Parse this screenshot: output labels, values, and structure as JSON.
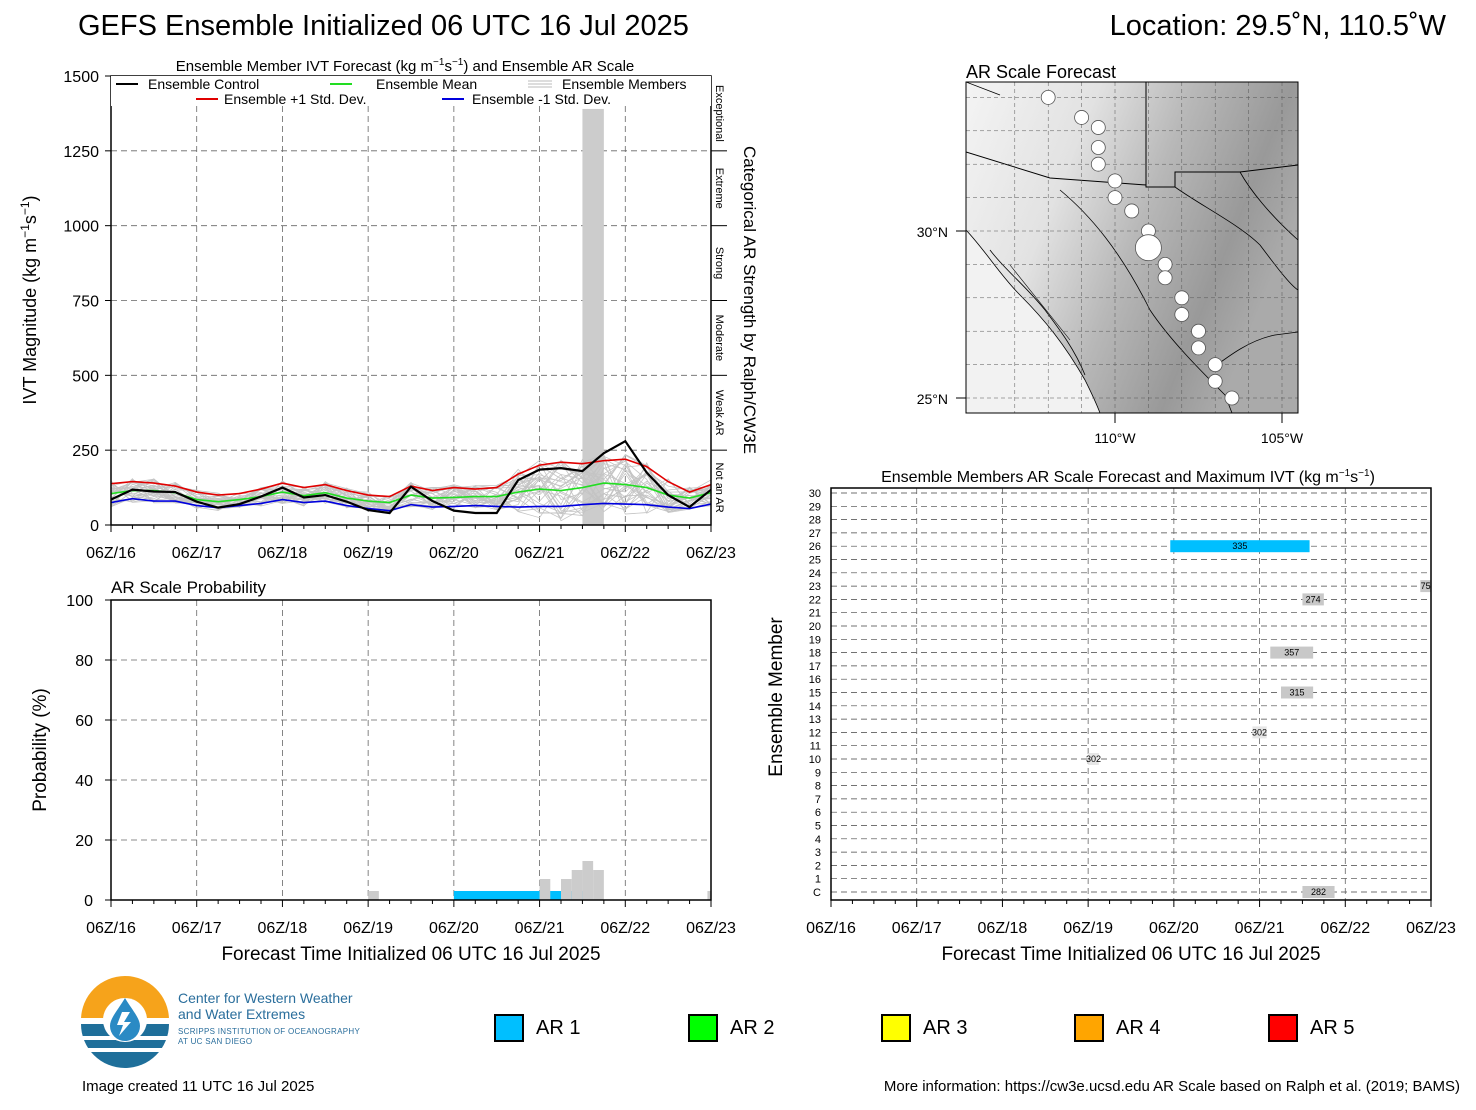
{
  "header": {
    "title": "GEFS Ensemble Initialized 06 UTC 16 Jul 2025",
    "location": "Location: 29.5˚N, 110.5˚W"
  },
  "x_tick_labels": [
    "06Z/16",
    "06Z/17",
    "06Z/18",
    "06Z/19",
    "06Z/20",
    "06Z/21",
    "06Z/22",
    "06Z/23"
  ],
  "x_axis_label": "Forecast Time Initialized 06 UTC 16 Jul 2025",
  "ivt_panel": {
    "title_prefix": "Ensemble Member IVT Forecast (kg m",
    "title_sup1": "−1",
    "title_mid": "s",
    "title_sup2": "−1",
    "title_suffix": ") and Ensemble AR Scale",
    "ylabel_prefix": "IVT Magnitude (kg m",
    "ylabel_sup1": "−1",
    "ylabel_mid": "s",
    "ylabel_sup2": "−1",
    "ylabel_suffix": ")",
    "right_label": "Categorical AR Strength by Ralph/CW3E",
    "legend": {
      "control": "Ensemble Control",
      "mean": "Ensemble Mean",
      "members": "Ensemble Members",
      "plus": "Ensemble +1 Std. Dev.",
      "minus": "Ensemble -1 Std. Dev."
    },
    "categories": [
      {
        "label": "Not an AR",
        "lo": 0,
        "hi": 250
      },
      {
        "label": "Weak AR",
        "lo": 250,
        "hi": 500
      },
      {
        "label": "Moderate",
        "lo": 500,
        "hi": 750
      },
      {
        "label": "Strong",
        "lo": 750,
        "hi": 1000
      },
      {
        "label": "Extreme",
        "lo": 1000,
        "hi": 1250
      },
      {
        "label": "Exceptional",
        "lo": 1250,
        "hi": 1500
      }
    ]
  },
  "prob_panel": {
    "title": "AR Scale Probability",
    "ylabel": "Probability (%)"
  },
  "map_panel": {
    "title": "AR Scale Forecast",
    "lat_labels": [
      "30°N",
      "25°N"
    ],
    "lon_labels": [
      "110°W",
      "105°W"
    ]
  },
  "members_panel": {
    "title_prefix": "Ensemble Members AR Scale Forecast and Maximum IVT (kg m",
    "title_sup1": "−1",
    "title_mid": "s",
    "title_sup2": "−1",
    "title_suffix": ")",
    "ylabel": "Ensemble Member",
    "row_labels": [
      "C",
      "1",
      "2",
      "3",
      "4",
      "5",
      "6",
      "7",
      "8",
      "9",
      "10",
      "11",
      "12",
      "13",
      "14",
      "15",
      "16",
      "17",
      "18",
      "19",
      "20",
      "21",
      "22",
      "23",
      "24",
      "25",
      "26",
      "27",
      "28",
      "29",
      "30"
    ]
  },
  "ar_legend": [
    {
      "label": "AR 1",
      "color": "#00bfff"
    },
    {
      "label": "AR 2",
      "color": "#00ff00"
    },
    {
      "label": "AR 3",
      "color": "#ffff00"
    },
    {
      "label": "AR 4",
      "color": "#ffa500"
    },
    {
      "label": "AR 5",
      "color": "#ff0000"
    }
  ],
  "logo": {
    "line1": "Center for Western Weather",
    "line2": "and Water Extremes",
    "line3": "SCRIPPS INSTITUTION OF OCEANOGRAPHY",
    "line4": "AT UC SAN DIEGO"
  },
  "footer": {
    "created": "Image created 11 UTC 16 Jul 2025",
    "info": "More information: https://cw3e.ucsd.edu AR Scale based on Ralph et al. (2019; BAMS)"
  },
  "chart_data": [
    {
      "type": "line",
      "name": "ivt_forecast",
      "x_hours": [
        0,
        6,
        12,
        18,
        24,
        30,
        36,
        42,
        48,
        54,
        60,
        66,
        72,
        78,
        84,
        90,
        96,
        102,
        108,
        114,
        120,
        126,
        132,
        138,
        144,
        150,
        156,
        162,
        168
      ],
      "ylim": [
        0,
        1500
      ],
      "yticks": [
        0,
        250,
        500,
        750,
        1000,
        1250,
        1500
      ],
      "xlim_hours": [
        0,
        168
      ],
      "series": [
        {
          "name": "Ensemble Control",
          "color": "#000000",
          "values": [
            85,
            118,
            112,
            110,
            78,
            58,
            70,
            95,
            125,
            92,
            100,
            78,
            50,
            40,
            128,
            80,
            48,
            40,
            40,
            150,
            185,
            190,
            180,
            240,
            280,
            175,
            100,
            60,
            118
          ]
        },
        {
          "name": "Ensemble Mean",
          "color": "#22dd22",
          "values": [
            105,
            115,
            115,
            108,
            85,
            78,
            85,
            95,
            110,
            98,
            108,
            90,
            80,
            75,
            100,
            90,
            92,
            95,
            95,
            110,
            120,
            115,
            125,
            140,
            135,
            125,
            100,
            90,
            108
          ]
        },
        {
          "name": "Ensemble +1 Std. Dev.",
          "color": "#e00000",
          "values": [
            138,
            145,
            140,
            130,
            110,
            100,
            105,
            120,
            140,
            125,
            135,
            115,
            100,
            95,
            130,
            115,
            125,
            120,
            125,
            170,
            200,
            210,
            205,
            215,
            220,
            195,
            145,
            110,
            135
          ]
        },
        {
          "name": "Ensemble -1 Std. Dev.",
          "color": "#0000dd",
          "values": [
            75,
            88,
            80,
            80,
            65,
            58,
            65,
            72,
            85,
            75,
            80,
            65,
            55,
            48,
            68,
            60,
            62,
            65,
            62,
            60,
            62,
            62,
            68,
            72,
            70,
            68,
            60,
            55,
            70
          ]
        }
      ],
      "ar_scale_bars": [
        {
          "hour_start": 132,
          "hour_end": 138,
          "ivt_max": 1390,
          "category": "Not an AR"
        }
      ]
    },
    {
      "type": "bar",
      "name": "ar_scale_probability",
      "ylim": [
        0,
        100
      ],
      "yticks": [
        0,
        20,
        40,
        60,
        80,
        100
      ],
      "bars": [
        {
          "hour_start": 72,
          "hour_end": 75,
          "value": 3,
          "color": "#cccccc"
        },
        {
          "hour_start": 96,
          "hour_end": 133,
          "value": 3,
          "color": "#00bfff"
        },
        {
          "hour_start": 120,
          "hour_end": 123,
          "value": 7,
          "color": "#cccccc"
        },
        {
          "hour_start": 126,
          "hour_end": 129,
          "value": 7,
          "color": "#cccccc"
        },
        {
          "hour_start": 129,
          "hour_end": 132,
          "value": 10,
          "color": "#cccccc"
        },
        {
          "hour_start": 132,
          "hour_end": 135,
          "value": 13,
          "color": "#cccccc"
        },
        {
          "hour_start": 135,
          "hour_end": 138,
          "value": 10,
          "color": "#cccccc"
        },
        {
          "hour_start": 167,
          "hour_end": 168,
          "value": 3,
          "color": "#cccccc"
        }
      ]
    },
    {
      "type": "scatter",
      "name": "ar_scale_forecast_map",
      "xlim_lon": [
        -113.0,
        -104.5
      ],
      "ylim_lat": [
        24.5,
        34.5
      ],
      "points": [
        {
          "lon": -112.0,
          "lat": 34.0,
          "size": 1
        },
        {
          "lon": -111.0,
          "lat": 33.4,
          "size": 1
        },
        {
          "lon": -110.5,
          "lat": 33.1,
          "size": 1
        },
        {
          "lon": -110.5,
          "lat": 32.5,
          "size": 1
        },
        {
          "lon": -110.5,
          "lat": 32.0,
          "size": 1
        },
        {
          "lon": -110.0,
          "lat": 31.5,
          "size": 1
        },
        {
          "lon": -110.0,
          "lat": 31.0,
          "size": 1
        },
        {
          "lon": -109.5,
          "lat": 30.6,
          "size": 1
        },
        {
          "lon": -109.0,
          "lat": 30.0,
          "size": 1
        },
        {
          "lon": -109.0,
          "lat": 29.5,
          "size": 2
        },
        {
          "lon": -108.5,
          "lat": 29.0,
          "size": 1
        },
        {
          "lon": -108.5,
          "lat": 28.6,
          "size": 1
        },
        {
          "lon": -108.0,
          "lat": 28.0,
          "size": 1
        },
        {
          "lon": -108.0,
          "lat": 27.5,
          "size": 1
        },
        {
          "lon": -107.5,
          "lat": 27.0,
          "size": 1
        },
        {
          "lon": -107.5,
          "lat": 26.5,
          "size": 1
        },
        {
          "lon": -107.0,
          "lat": 26.0,
          "size": 1
        },
        {
          "lon": -107.0,
          "lat": 25.5,
          "size": 1
        },
        {
          "lon": -106.5,
          "lat": 25.0,
          "size": 1
        }
      ]
    },
    {
      "type": "bar",
      "name": "ensemble_members_ar_scale",
      "xlim_hours": [
        0,
        168
      ],
      "bars": [
        {
          "member": "C",
          "hour_start": 132,
          "hour_end": 141,
          "color": "#c8c8c8",
          "ivt": "282"
        },
        {
          "member": "10",
          "hour_start": 72,
          "hour_end": 75,
          "color": "#e6e6e6",
          "ivt": "302"
        },
        {
          "member": "12",
          "hour_start": 118,
          "hour_end": 122,
          "color": "#e6e6e6",
          "ivt": "302"
        },
        {
          "member": "15",
          "hour_start": 126,
          "hour_end": 135,
          "color": "#c8c8c8",
          "ivt": "315"
        },
        {
          "member": "18",
          "hour_start": 123,
          "hour_end": 135,
          "color": "#c8c8c8",
          "ivt": "357"
        },
        {
          "member": "22",
          "hour_start": 132,
          "hour_end": 138,
          "color": "#c8c8c8",
          "ivt": "274"
        },
        {
          "member": "23",
          "hour_start": 165,
          "hour_end": 168,
          "color": "#c8c8c8",
          "ivt": "75"
        },
        {
          "member": "26",
          "hour_start": 95,
          "hour_end": 134,
          "color": "#00bfff",
          "ivt": "335"
        }
      ]
    }
  ]
}
